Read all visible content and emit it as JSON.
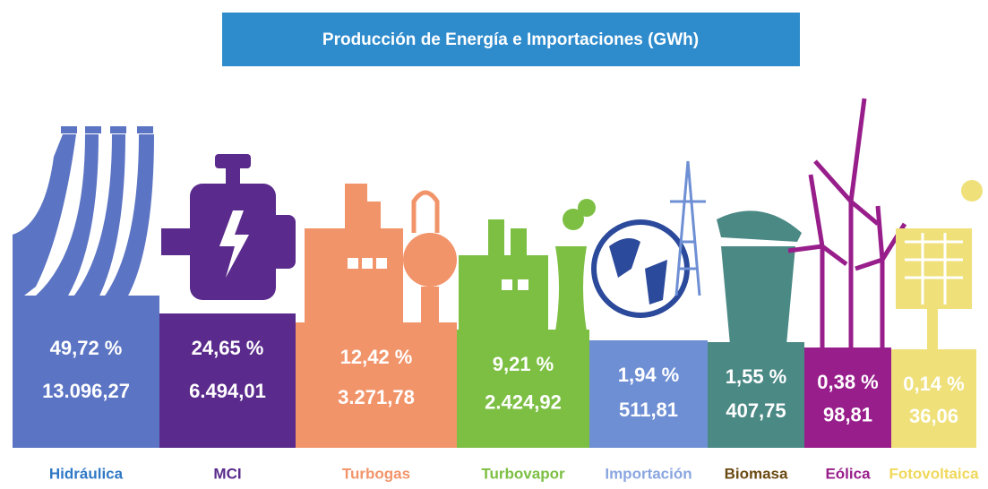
{
  "header": {
    "title": "Producción de Energía e Importaciones (GWh)"
  },
  "items": [
    {
      "name": "Hidráulica",
      "percent": "49,72 %",
      "value": "13.096,27",
      "color": "#5b74c3",
      "label_color": "#2f78c4"
    },
    {
      "name": "MCI",
      "percent": "24,65 %",
      "value": "6.494,01",
      "color": "#5a2b8c",
      "label_color": "#5a2b8c"
    },
    {
      "name": "Turbogas",
      "percent": "12,42 %",
      "value": "3.271,78",
      "color": "#f2946a",
      "label_color": "#f2946a"
    },
    {
      "name": "Turbovapor",
      "percent": "9,21 %",
      "value": "2.424,92",
      "color": "#7cbf43",
      "label_color": "#7cbf43"
    },
    {
      "name": "Importación",
      "percent": "1,94 %",
      "value": "511,81",
      "color": "#6e8fd4",
      "label_color": "#8aa6e0"
    },
    {
      "name": "Biomasa",
      "percent": "1,55 %",
      "value": "407,75",
      "color": "#4b8985",
      "label_color": "#6b4a12"
    },
    {
      "name": "Eólica",
      "percent": "0,38 %",
      "value": "98,81",
      "color": "#981e8b",
      "label_color": "#981e8b"
    },
    {
      "name": "Fotovoltaica",
      "percent": "0,14 %",
      "value": "36,06",
      "color": "#efe07a",
      "label_color": "#efd85a"
    }
  ]
}
